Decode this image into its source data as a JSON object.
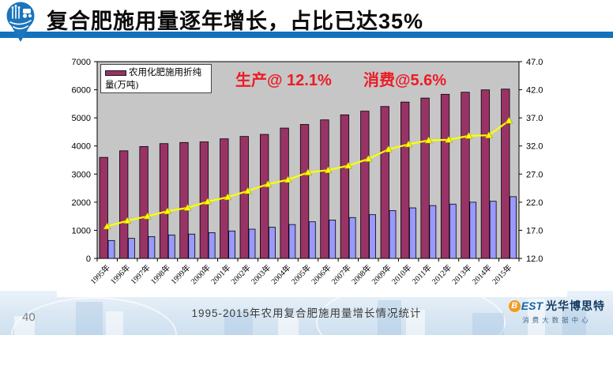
{
  "header": {
    "title": "复合肥施用量逐年增长，占比已达35%"
  },
  "page_number": "40",
  "caption": "1995-2015年农用复合肥施用量增长情况统计",
  "annotations": {
    "production": "生产@ 12.1%",
    "consumption": "消费@5.6%"
  },
  "legend": {
    "label": "农用化肥施用折纯量(万吨)"
  },
  "footer_logo": {
    "badge": "B",
    "brand_rest": "EST",
    "brand_cn": "光华博思特",
    "subtitle": "消费大数据中心"
  },
  "colors": {
    "header_bar_blue": "#1272BC",
    "logo_blue": "#1B74BC",
    "annotation_red": "#ED1B24",
    "bar_maroon": "#993366",
    "bar_light_purple": "#9999FF",
    "line_yellow": "#FFFF00",
    "plot_background": "#C6C6C6"
  },
  "chart_data": {
    "type": "bar",
    "title": "1995-2015年农用复合肥施用量增长情况统计",
    "categories": [
      "1995年",
      "1996年",
      "1997年",
      "1998年",
      "1999年",
      "2000年",
      "2001年",
      "2002年",
      "2003年",
      "2004年",
      "2005年",
      "2006年",
      "2007年",
      "2008年",
      "2009年",
      "2010年",
      "2011年",
      "2012年",
      "2013年",
      "2014年",
      "2015年"
    ],
    "series": [
      {
        "name": "农用化肥施用折纯量(万吨)",
        "type": "bar",
        "axis": "left",
        "color": "#993366",
        "values": [
          3594,
          3828,
          3981,
          4084,
          4124,
          4146,
          4254,
          4339,
          4412,
          4637,
          4766,
          4928,
          5108,
          5239,
          5404,
          5562,
          5704,
          5839,
          5912,
          5996,
          6023
        ]
      },
      {
        "name": "light-purple-bars",
        "type": "bar",
        "axis": "left",
        "color": "#9999FF",
        "values": [
          637,
          714,
          776,
          834,
          865,
          917,
          976,
          1040,
          1110,
          1205,
          1303,
          1366,
          1454,
          1555,
          1699,
          1798,
          1880,
          1932,
          2000,
          2033,
          2196
        ]
      },
      {
        "name": "yellow-percent-line",
        "type": "line",
        "axis": "right",
        "color": "#FFFF00",
        "values": [
          17.7,
          18.7,
          19.5,
          20.4,
          21.0,
          22.1,
          22.9,
          24.0,
          25.2,
          26.0,
          27.3,
          27.7,
          28.5,
          29.7,
          31.4,
          32.3,
          33.0,
          33.1,
          33.8,
          33.9,
          36.5
        ]
      }
    ],
    "left_axis": {
      "min": 0,
      "max": 7000,
      "step": 1000,
      "ticks": [
        "0",
        "1000",
        "2000",
        "3000",
        "4000",
        "5000",
        "6000",
        "7000"
      ]
    },
    "right_axis": {
      "min": 12,
      "max": 47,
      "step": 5,
      "ticks": [
        "12.0",
        "17.0",
        "22.0",
        "27.0",
        "32.0",
        "37.0",
        "42.0",
        "47.0"
      ]
    },
    "plot_bg": "#C6C6C6",
    "grid": false,
    "legend_position": "top-left-inside"
  }
}
